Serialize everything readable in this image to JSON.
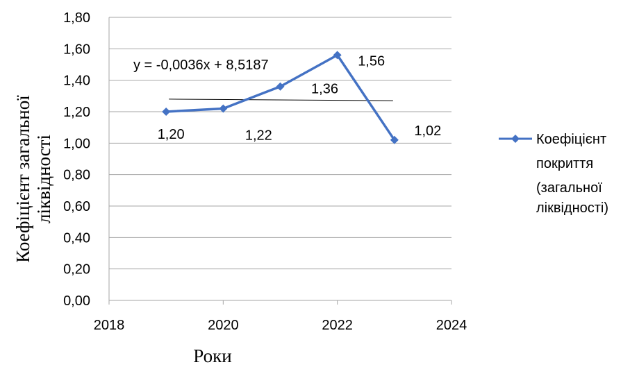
{
  "chart_data": {
    "type": "line",
    "title": "",
    "xlabel": "Роки",
    "ylabel_lines": [
      "Коефіцієнт загальної",
      "ліквідності"
    ],
    "xlim": [
      2018,
      2024
    ],
    "ylim": [
      0,
      1.8
    ],
    "x_ticks": [
      2018,
      2020,
      2022,
      2024
    ],
    "y_ticks": [
      "0,00",
      "0,20",
      "0,40",
      "0,60",
      "0,80",
      "1,00",
      "1,20",
      "1,40",
      "1,60",
      "1,80"
    ],
    "y_tick_values": [
      0,
      0.2,
      0.4,
      0.6,
      0.8,
      1.0,
      1.2,
      1.4,
      1.6,
      1.8
    ],
    "grid": "horizontal",
    "legend_position": "right",
    "series": [
      {
        "name_lines": [
          "Коефіцієнт",
          "покриття",
          "(загальної",
          "ліквідності)"
        ],
        "color": "#4472C4",
        "marker": "diamond",
        "x": [
          2019,
          2020,
          2021,
          2022,
          2023
        ],
        "values": [
          1.2,
          1.22,
          1.36,
          1.56,
          1.02
        ],
        "labels": [
          "1,20",
          "1,22",
          "1,36",
          "1,56",
          "1,02"
        ]
      }
    ],
    "trendline": {
      "type": "linear",
      "equation": "y = -0,0036x + 8,5187",
      "slope": -0.0036,
      "intercept": 8.5187,
      "x_range": [
        2019,
        2023
      ],
      "color": "#000000"
    }
  }
}
